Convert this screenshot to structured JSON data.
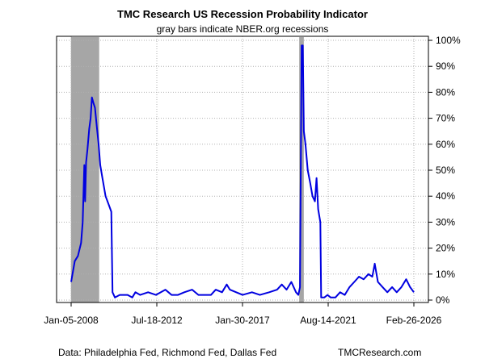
{
  "chart_data": {
    "type": "line",
    "title": "TMC Research US Recession Probability Indicator",
    "subtitle": "gray bars indicate NBER.org recessions",
    "xlabel": "",
    "ylabel": "",
    "x_ticks": [
      "Jan-05-2008",
      "Jul-18-2012",
      "Jan-30-2017",
      "Aug-14-2021",
      "Feb-26-2026"
    ],
    "y_ticks": [
      "0%",
      "10%",
      "20%",
      "30%",
      "40%",
      "50%",
      "60%",
      "70%",
      "80%",
      "90%",
      "100%"
    ],
    "ylim": [
      0,
      100
    ],
    "xlim": [
      "2008-01-05",
      "2026-02-26"
    ],
    "grid": true,
    "y_axis_side": "right",
    "recessions": [
      {
        "start": "2008-01-01",
        "end": "2009-06-30"
      },
      {
        "start": "2020-02-01",
        "end": "2020-04-30"
      }
    ],
    "series": [
      {
        "color": "#0000e0",
        "points": [
          [
            "2008-01-05",
            7
          ],
          [
            "2008-03-15",
            15
          ],
          [
            "2008-05-15",
            17
          ],
          [
            "2008-07-15",
            22
          ],
          [
            "2008-08-15",
            30
          ],
          [
            "2008-09-15",
            52
          ],
          [
            "2008-10-01",
            38
          ],
          [
            "2008-10-20",
            53
          ],
          [
            "2008-11-15",
            58
          ],
          [
            "2008-12-20",
            66
          ],
          [
            "2009-01-15",
            70
          ],
          [
            "2009-02-10",
            78
          ],
          [
            "2009-03-10",
            76
          ],
          [
            "2009-04-10",
            74
          ],
          [
            "2009-05-15",
            67
          ],
          [
            "2009-06-20",
            60
          ],
          [
            "2009-07-20",
            52
          ],
          [
            "2009-09-01",
            47
          ],
          [
            "2009-11-01",
            40
          ],
          [
            "2010-01-15",
            36
          ],
          [
            "2010-02-20",
            34
          ],
          [
            "2010-03-15",
            3
          ],
          [
            "2010-05-01",
            1
          ],
          [
            "2010-08-01",
            2
          ],
          [
            "2011-01-01",
            2
          ],
          [
            "2011-04-01",
            1
          ],
          [
            "2011-06-01",
            3
          ],
          [
            "2011-09-01",
            2
          ],
          [
            "2012-02-01",
            3
          ],
          [
            "2012-07-01",
            2
          ],
          [
            "2013-01-01",
            4
          ],
          [
            "2013-03-01",
            3
          ],
          [
            "2013-05-01",
            2
          ],
          [
            "2013-09-01",
            2
          ],
          [
            "2014-01-01",
            3
          ],
          [
            "2014-06-01",
            4
          ],
          [
            "2014-10-01",
            2
          ],
          [
            "2015-06-01",
            2
          ],
          [
            "2015-09-01",
            4
          ],
          [
            "2016-01-01",
            3
          ],
          [
            "2016-04-01",
            6
          ],
          [
            "2016-06-01",
            4
          ],
          [
            "2016-10-01",
            3
          ],
          [
            "2017-02-01",
            2
          ],
          [
            "2017-08-01",
            3
          ],
          [
            "2018-01-01",
            2
          ],
          [
            "2018-07-01",
            3
          ],
          [
            "2018-12-01",
            4
          ],
          [
            "2019-03-01",
            6
          ],
          [
            "2019-06-01",
            4
          ],
          [
            "2019-09-01",
            7
          ],
          [
            "2019-12-01",
            3
          ],
          [
            "2020-01-15",
            2
          ],
          [
            "2020-02-15",
            5
          ],
          [
            "2020-03-05",
            60
          ],
          [
            "2020-03-20",
            98
          ],
          [
            "2020-04-10",
            98
          ],
          [
            "2020-05-01",
            65
          ],
          [
            "2020-06-01",
            60
          ],
          [
            "2020-07-15",
            50
          ],
          [
            "2020-09-01",
            45
          ],
          [
            "2020-10-15",
            40
          ],
          [
            "2020-12-01",
            38
          ],
          [
            "2021-01-01",
            47
          ],
          [
            "2021-02-01",
            35
          ],
          [
            "2021-03-15",
            30
          ],
          [
            "2021-04-01",
            1
          ],
          [
            "2021-06-01",
            1
          ],
          [
            "2021-08-01",
            2
          ],
          [
            "2021-10-01",
            1
          ],
          [
            "2022-01-01",
            1
          ],
          [
            "2022-04-01",
            3
          ],
          [
            "2022-07-01",
            2
          ],
          [
            "2022-10-01",
            5
          ],
          [
            "2023-01-01",
            7
          ],
          [
            "2023-04-01",
            9
          ],
          [
            "2023-07-01",
            8
          ],
          [
            "2023-10-01",
            10
          ],
          [
            "2023-12-15",
            9
          ],
          [
            "2024-02-01",
            14
          ],
          [
            "2024-04-01",
            7
          ],
          [
            "2024-07-01",
            5
          ],
          [
            "2024-10-01",
            3
          ],
          [
            "2025-01-01",
            5
          ],
          [
            "2025-04-01",
            3
          ],
          [
            "2025-07-01",
            5
          ],
          [
            "2025-10-01",
            8
          ],
          [
            "2025-12-15",
            5
          ],
          [
            "2026-02-26",
            3
          ]
        ]
      }
    ]
  },
  "footer": {
    "source": "Data: Philadelphia Fed, Richmond Fed, Dallas Fed",
    "brand": "TMCResearch.com"
  }
}
